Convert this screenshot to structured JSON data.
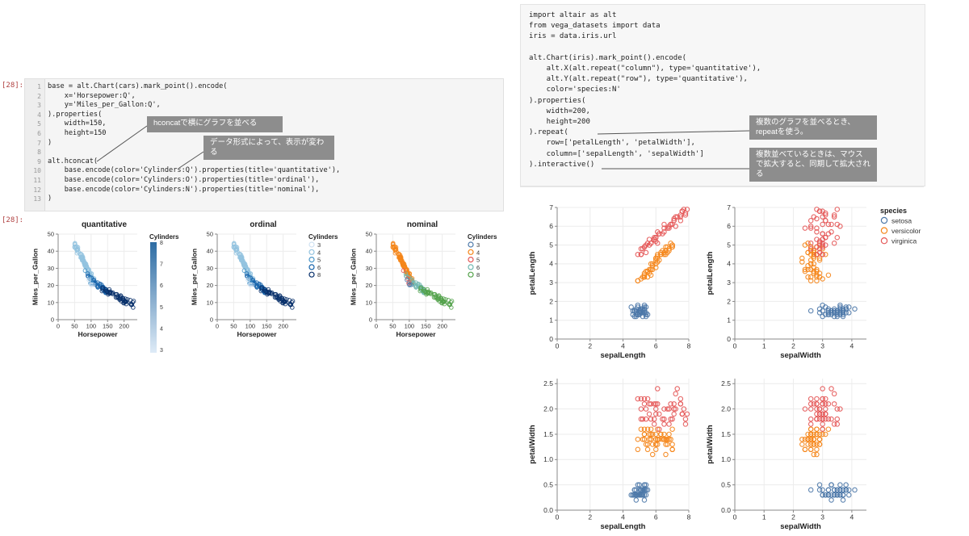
{
  "left_cell": {
    "in_prompt": "[28]:",
    "out_prompt": "[28]:",
    "line_numbers": [
      "1",
      "2",
      "3",
      "4",
      "5",
      "6",
      "7",
      "8",
      "9",
      "10",
      "11",
      "12",
      "13"
    ],
    "code_lines": [
      "base = alt.Chart(cars).mark_point().encode(",
      "    x='Horsepower:Q',",
      "    y='Miles_per_Gallon:Q',",
      ").properties(",
      "    width=150,",
      "    height=150",
      ")",
      "",
      "alt.hconcat(",
      "    base.encode(color='Cylinders:Q').properties(title='quantitative'),",
      "    base.encode(color='Cylinders:O').properties(title='ordinal'),",
      "    base.encode(color='Cylinders:N').properties(title='nominal'),",
      ")"
    ]
  },
  "right_cell": {
    "code_lines": [
      "import altair as alt",
      "from vega_datasets import data",
      "iris = data.iris.url",
      "",
      "alt.Chart(iris).mark_point().encode(",
      "    alt.X(alt.repeat(\"column\"), type='quantitative'),",
      "    alt.Y(alt.repeat(\"row\"), type='quantitative'),",
      "    color='species:N'",
      ").properties(",
      "    width=200,",
      "    height=200",
      ").repeat(",
      "    row=['petalLength', 'petalWidth'],",
      "    column=['sepalLength', 'sepalWidth']",
      ").interactive()"
    ]
  },
  "callouts": {
    "hconcat": "hconcatで横にグラフを並べる",
    "datatype": "データ形式によって、表示が変わる",
    "repeat": "複数のグラフを並べるとき、repeatを使う。",
    "interactive": "複数並べているときは、マウスで拡大すると、同期して拡大される"
  },
  "colors": {
    "setosa": "#4c78a8",
    "versicolor": "#f58518",
    "virginica": "#e45756",
    "blues_light": "#cfe1f2",
    "blues_dark": "#08306b"
  },
  "chart_data": [
    {
      "type": "scatter",
      "title": "quantitative",
      "xlabel": "Horsepower",
      "ylabel": "Miles_per_Gallon",
      "xlim": [
        0,
        240
      ],
      "ylim": [
        0,
        50
      ],
      "x_ticks": [
        0,
        50,
        100,
        150,
        200
      ],
      "y_ticks": [
        0,
        10,
        20,
        30,
        40,
        50
      ],
      "legend": {
        "title": "Cylinders",
        "type": "gradient",
        "labels": [
          "8",
          "7",
          "6",
          "5",
          "4",
          "3"
        ]
      }
    },
    {
      "type": "scatter",
      "title": "ordinal",
      "xlabel": "Horsepower",
      "ylabel": "Miles_per_Gallon",
      "xlim": [
        0,
        240
      ],
      "ylim": [
        0,
        50
      ],
      "x_ticks": [
        0,
        50,
        100,
        150,
        200
      ],
      "y_ticks": [
        0,
        10,
        20,
        30,
        40,
        50
      ],
      "legend": {
        "title": "Cylinders",
        "labels": [
          "3",
          "4",
          "5",
          "6",
          "8"
        ],
        "colors": [
          "#cfe1f2",
          "#93c3df",
          "#4b97c9",
          "#1764ab",
          "#08306b"
        ]
      }
    },
    {
      "type": "scatter",
      "title": "nominal",
      "xlabel": "Horsepower",
      "ylabel": "Miles_per_Gallon",
      "xlim": [
        0,
        240
      ],
      "ylim": [
        0,
        50
      ],
      "x_ticks": [
        0,
        50,
        100,
        150,
        200
      ],
      "y_ticks": [
        0,
        10,
        20,
        30,
        40,
        50
      ],
      "legend": {
        "title": "Cylinders",
        "labels": [
          "3",
          "4",
          "5",
          "6",
          "8"
        ],
        "colors": [
          "#4c78a8",
          "#f58518",
          "#e45756",
          "#72b7b2",
          "#54a24b"
        ]
      }
    },
    {
      "type": "scatter",
      "repeat_panels": [
        {
          "x": "sepalLength",
          "y": "petalLength",
          "xlim": [
            0,
            8
          ],
          "ylim": [
            0,
            7
          ],
          "x_ticks": [
            0,
            2,
            4,
            6,
            8
          ],
          "y_ticks": [
            0,
            1,
            2,
            3,
            4,
            5,
            6,
            7
          ]
        },
        {
          "x": "sepalWidth",
          "y": "petalLength",
          "xlim": [
            0,
            4.5
          ],
          "ylim": [
            0,
            7
          ],
          "x_ticks": [
            0,
            1,
            2,
            3,
            4
          ],
          "y_ticks": [
            0,
            1,
            2,
            3,
            4,
            5,
            6,
            7
          ]
        },
        {
          "x": "sepalLength",
          "y": "petalWidth",
          "xlim": [
            0,
            8
          ],
          "ylim": [
            0,
            2.6
          ],
          "x_ticks": [
            0,
            2,
            4,
            6,
            8
          ],
          "y_ticks": [
            "0.0",
            "0.5",
            "1.0",
            "1.5",
            "2.0",
            "2.5"
          ]
        },
        {
          "x": "sepalWidth",
          "y": "petalWidth",
          "xlim": [
            0,
            4.5
          ],
          "ylim": [
            0,
            2.6
          ],
          "x_ticks": [
            0,
            1,
            2,
            3,
            4
          ],
          "y_ticks": [
            "0.0",
            "0.5",
            "1.0",
            "1.5",
            "2.0",
            "2.5"
          ]
        }
      ],
      "legend": {
        "title": "species",
        "labels": [
          "setosa",
          "versicolor",
          "virginica"
        ],
        "colors": [
          "#4c78a8",
          "#f58518",
          "#e45756"
        ]
      },
      "clusters": {
        "setosa": {
          "sepalLength": [
            4.3,
            5.8
          ],
          "sepalWidth": [
            2.3,
            4.4
          ],
          "petalLength": [
            1.0,
            1.9
          ],
          "petalWidth": [
            0.1,
            0.6
          ]
        },
        "versicolor": {
          "sepalLength": [
            4.9,
            7.0
          ],
          "sepalWidth": [
            2.0,
            3.4
          ],
          "petalLength": [
            3.0,
            5.1
          ],
          "petalWidth": [
            1.0,
            1.8
          ]
        },
        "virginica": {
          "sepalLength": [
            4.9,
            7.9
          ],
          "sepalWidth": [
            2.2,
            3.8
          ],
          "petalLength": [
            4.5,
            6.9
          ],
          "petalWidth": [
            1.4,
            2.5
          ]
        }
      }
    }
  ]
}
